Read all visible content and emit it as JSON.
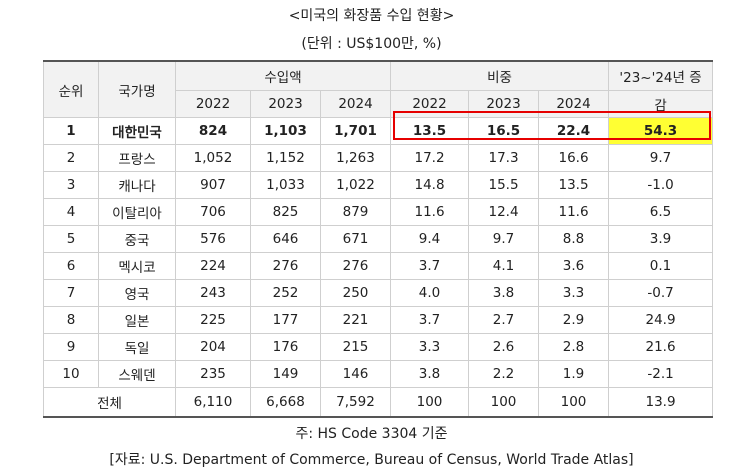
{
  "title": "<미국의 화장품 수입 현황>",
  "unit": "(단위 : US$100만, %)",
  "table": {
    "header": {
      "rank": "순위",
      "country": "국가명",
      "import_group": "수입액",
      "share_group": "비중",
      "change_line1": "'23~'24년 증",
      "change_line2": "감",
      "years": [
        "2022",
        "2023",
        "2024"
      ]
    },
    "rows": [
      {
        "rank": "1",
        "country": "대한민국",
        "imp2022": "824",
        "imp2023": "1,103",
        "imp2024": "1,701",
        "sh2022": "13.5",
        "sh2023": "16.5",
        "sh2024": "22.4",
        "change": "54.3"
      },
      {
        "rank": "2",
        "country": "프랑스",
        "imp2022": "1,052",
        "imp2023": "1,152",
        "imp2024": "1,263",
        "sh2022": "17.2",
        "sh2023": "17.3",
        "sh2024": "16.6",
        "change": "9.7"
      },
      {
        "rank": "3",
        "country": "캐나다",
        "imp2022": "907",
        "imp2023": "1,033",
        "imp2024": "1,022",
        "sh2022": "14.8",
        "sh2023": "15.5",
        "sh2024": "13.5",
        "change": "-1.0"
      },
      {
        "rank": "4",
        "country": "이탈리아",
        "imp2022": "706",
        "imp2023": "825",
        "imp2024": "879",
        "sh2022": "11.6",
        "sh2023": "12.4",
        "sh2024": "11.6",
        "change": "6.5"
      },
      {
        "rank": "5",
        "country": "중국",
        "imp2022": "576",
        "imp2023": "646",
        "imp2024": "671",
        "sh2022": "9.4",
        "sh2023": "9.7",
        "sh2024": "8.8",
        "change": "3.9"
      },
      {
        "rank": "6",
        "country": "멕시코",
        "imp2022": "224",
        "imp2023": "276",
        "imp2024": "276",
        "sh2022": "3.7",
        "sh2023": "4.1",
        "sh2024": "3.6",
        "change": "0.1"
      },
      {
        "rank": "7",
        "country": "영국",
        "imp2022": "243",
        "imp2023": "252",
        "imp2024": "250",
        "sh2022": "4.0",
        "sh2023": "3.8",
        "sh2024": "3.3",
        "change": "-0.7"
      },
      {
        "rank": "8",
        "country": "일본",
        "imp2022": "225",
        "imp2023": "177",
        "imp2024": "221",
        "sh2022": "3.7",
        "sh2023": "2.7",
        "sh2024": "2.9",
        "change": "24.9"
      },
      {
        "rank": "9",
        "country": "독일",
        "imp2022": "204",
        "imp2023": "176",
        "imp2024": "215",
        "sh2022": "3.3",
        "sh2023": "2.6",
        "sh2024": "2.8",
        "change": "21.6"
      },
      {
        "rank": "10",
        "country": "스웨덴",
        "imp2022": "235",
        "imp2023": "149",
        "imp2024": "146",
        "sh2022": "3.8",
        "sh2023": "2.2",
        "sh2024": "1.9",
        "change": "-2.1"
      }
    ],
    "total": {
      "label": "전체",
      "imp2022": "6,110",
      "imp2023": "6,668",
      "imp2024": "7,592",
      "sh2022": "100",
      "sh2023": "100",
      "sh2024": "100",
      "change": "13.9"
    }
  },
  "highlight_color": "#ffff33",
  "box_color": "#e60000",
  "note": "주: HS Code 3304 기준",
  "source": "[자료: U.S. Department of Commerce, Bureau of Census, World Trade Atlas]"
}
